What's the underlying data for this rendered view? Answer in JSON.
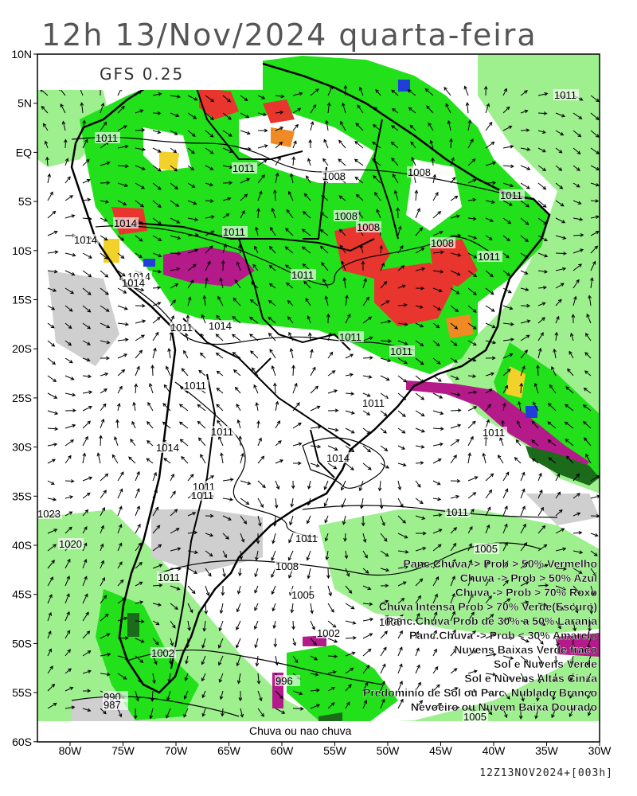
{
  "title": "12h  13/Nov/2024 quarta-feira",
  "model_label": "GFS 0.25",
  "footer": "12Z13NOV2024+[003h]",
  "bottom_caption": "Chuva ou nao chuva",
  "lat_ticks": [
    "10N",
    "5N",
    "EQ",
    "5S",
    "10S",
    "15S",
    "20S",
    "25S",
    "30S",
    "35S",
    "40S",
    "45S",
    "50S",
    "55S",
    "60S"
  ],
  "lon_ticks": [
    "80W",
    "75W",
    "70W",
    "65W",
    "60W",
    "55W",
    "50W",
    "45W",
    "40W",
    "35W",
    "30W"
  ],
  "legend": [
    {
      "text": "Panc.Chuva -> Prob > 50% Vermelho",
      "color": "#e8352e"
    },
    {
      "text": "Chuva -> Prob > 50% Azul",
      "color": "#1f3fd8"
    },
    {
      "text": "Chuva -> Prob > 70% Roxo",
      "color": "#b51a8a"
    },
    {
      "text": "Chuva Intensa Prob > 70% Verde(Escuro)",
      "color": "#1b6b1b"
    },
    {
      "text": "Panc.Chuva Prob de 30% a 50% Laranja",
      "color": "#f08a24"
    },
    {
      "text": "Panc.Chuva -> Prob < 30% Amarelo",
      "color": "#f2d22a"
    },
    {
      "text": "Nuvens Baixas Verde fraco",
      "color": "#9ef08f"
    },
    {
      "text": "Sol e Nuvens Verde",
      "color": "#22e01a"
    },
    {
      "text": "Sol e Nuvens Altas Cinza",
      "color": "#cfcfcf"
    },
    {
      "text": "Predominio de Sol ou Parc. Nublado Branco",
      "color": "#ffffff"
    },
    {
      "text": "Nevoeiro ou Nuvem Baixa Dourado",
      "color": "#b8860b"
    }
  ],
  "isobar_labels": [
    "1011",
    "1011",
    "1008",
    "1008",
    "1008",
    "1008",
    "1008",
    "1011",
    "1014",
    "1014",
    "1011",
    "1011",
    "1014",
    "1014",
    "1011",
    "1014",
    "1011",
    "1011",
    "1011",
    "1011",
    "1011",
    "1011",
    "1011",
    "1014",
    "1014",
    "1011",
    "1011",
    "1011",
    "1023",
    "1020",
    "1008",
    "1005",
    "1011",
    "1005",
    "1002",
    "1005",
    "1002",
    "996",
    "990",
    "987",
    "1005",
    "1011",
    "1011"
  ]
}
